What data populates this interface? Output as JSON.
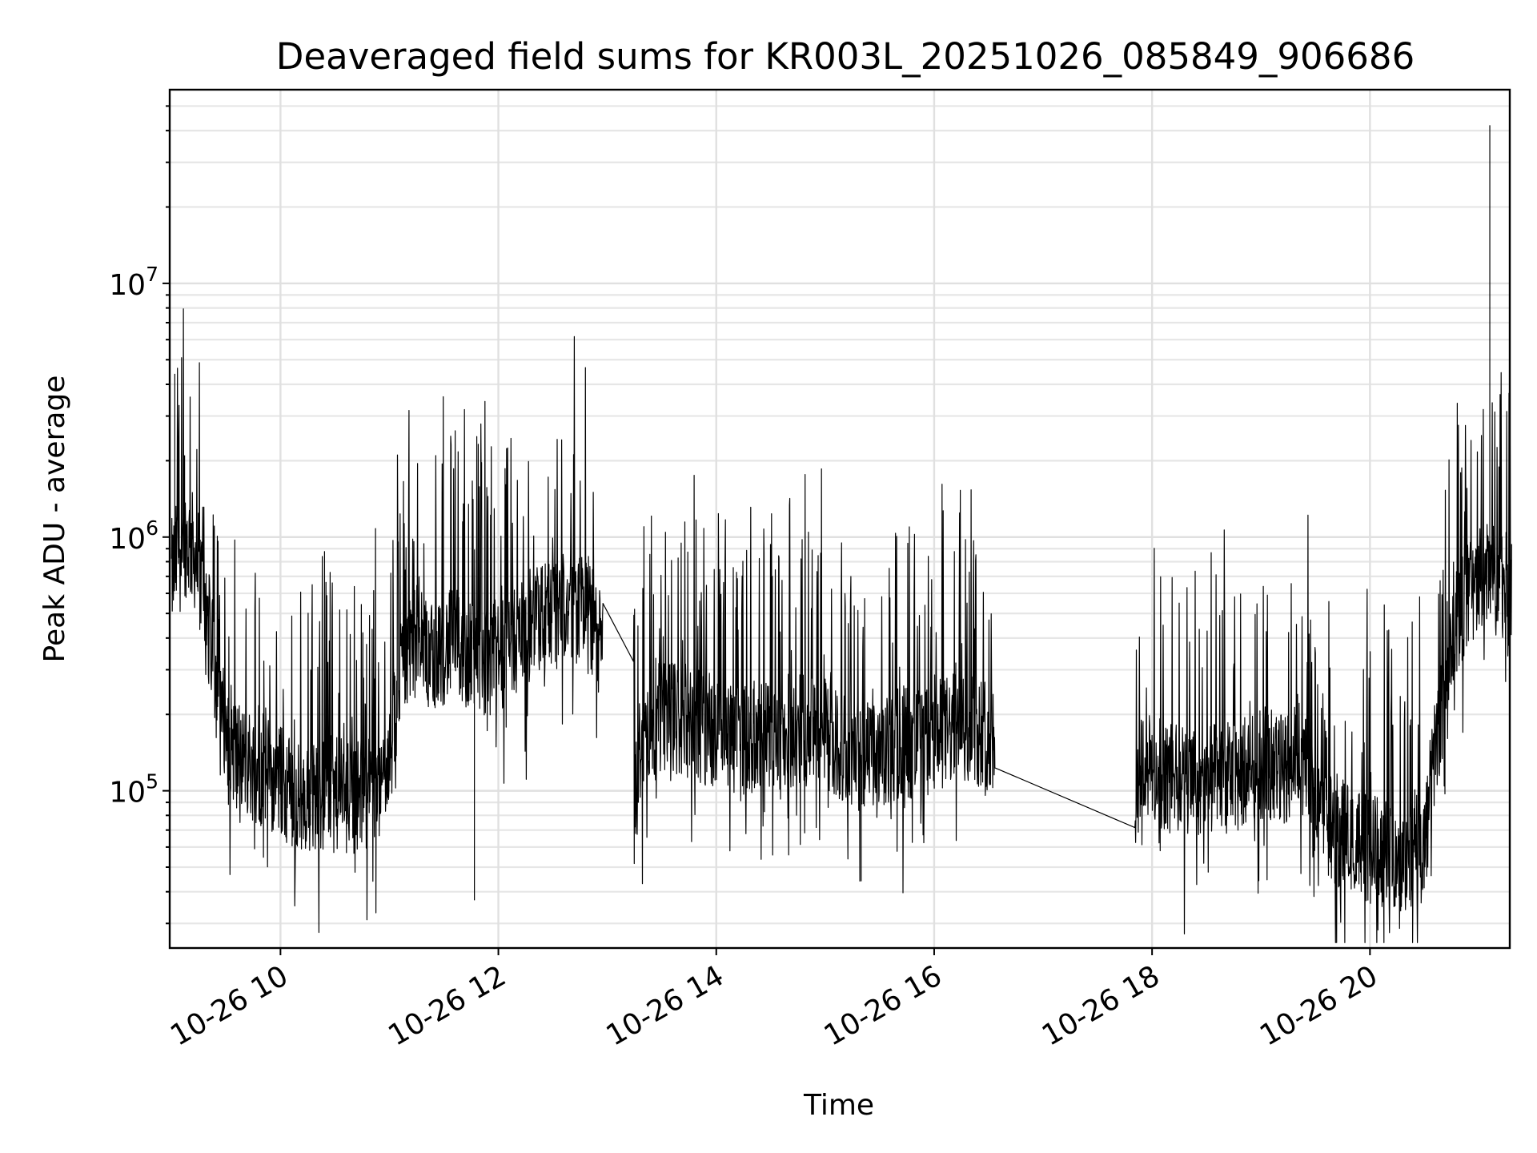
{
  "chart_data": {
    "type": "line",
    "title": "Deaveraged field sums for KR003L_20251026_085849_906686",
    "xlabel": "Time",
    "ylabel": "Peak ADU - average",
    "y_scale": "log",
    "grid": "major and minor",
    "xlim": [
      "2025-10-26 08:59",
      "2025-10-26 21:17"
    ],
    "ylim": [
      24000,
      58000000
    ],
    "x_ticks": [
      "10-26 10",
      "10-26 12",
      "10-26 14",
      "10-26 16",
      "10-26 18",
      "10-26 20"
    ],
    "x_tick_hours": [
      10,
      12,
      14,
      16,
      18,
      20
    ],
    "y_ticks": [
      {
        "base": "10",
        "exp": "5",
        "value": 100000
      },
      {
        "base": "10",
        "exp": "6",
        "value": 1000000
      },
      {
        "base": "10",
        "exp": "7",
        "value": 10000000
      }
    ],
    "line_color": "#000000",
    "series": [
      {
        "x_hours": [
          9.0,
          9.1,
          9.2,
          9.3,
          9.45,
          9.6,
          9.8,
          10.0,
          10.2,
          10.4,
          10.6,
          10.8,
          11.0,
          11.1,
          11.2,
          11.4,
          11.6,
          11.8,
          12.0,
          12.2,
          12.4,
          12.6,
          12.8,
          12.95,
          13.25,
          13.3,
          13.5,
          13.7,
          14.0,
          14.3,
          14.6,
          14.9,
          15.1,
          15.3,
          15.5,
          15.7,
          15.9,
          16.1,
          16.3,
          16.55,
          17.85,
          17.9,
          18.0,
          18.2,
          18.4,
          18.6,
          18.8,
          19.0,
          19.2,
          19.35,
          19.5,
          19.7,
          19.9,
          20.1,
          20.3,
          20.5,
          20.6,
          20.7,
          20.8,
          20.9,
          21.0,
          21.1,
          21.15,
          21.2,
          21.3
        ],
        "y": [
          700000,
          1000000,
          900000,
          600000,
          200000,
          140000,
          120000,
          110000,
          90000,
          100000,
          95000,
          100000,
          120000,
          300000,
          400000,
          350000,
          380000,
          320000,
          340000,
          420000,
          480000,
          520000,
          540000,
          360000,
          80000,
          150000,
          200000,
          190000,
          170000,
          160000,
          170000,
          180000,
          150000,
          140000,
          130000,
          160000,
          150000,
          170000,
          180000,
          165000,
          100000,
          130000,
          120000,
          110000,
          105000,
          110000,
          115000,
          130000,
          120000,
          150000,
          80000,
          70000,
          60000,
          58000,
          55000,
          60000,
          150000,
          250000,
          450000,
          600000,
          650000,
          700000,
          680000,
          650000,
          620000
        ]
      }
    ]
  }
}
